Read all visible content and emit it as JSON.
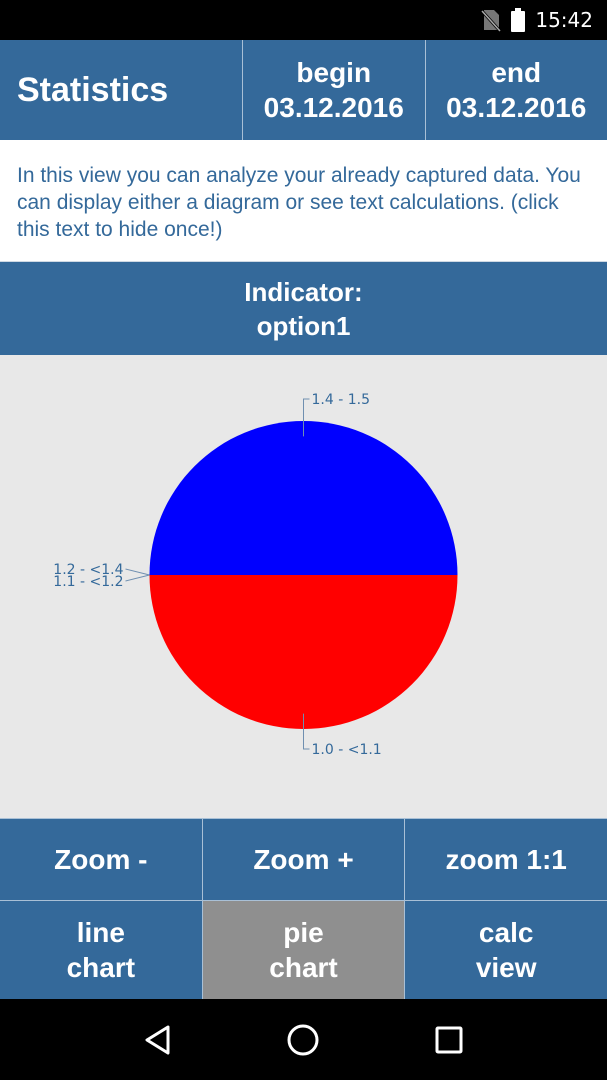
{
  "status_bar": {
    "time": "15:42",
    "icons": [
      "no-sim-icon",
      "battery-icon"
    ]
  },
  "header": {
    "title": "Statistics",
    "begin": {
      "label": "begin",
      "date": "03.12.2016"
    },
    "end": {
      "label": "end",
      "date": "03.12.2016"
    }
  },
  "info_text": "In this view you can analyze your already captured data. You can display either a diagram or see text calculations. (click this text to hide once!)",
  "indicator": {
    "label": "Indicator:",
    "value": "option1"
  },
  "chart_data": {
    "type": "pie",
    "labels": [
      "1.4 - 1.5",
      "1.1 - <1.2",
      "1.2 - <1.4",
      "1.0 - <1.1"
    ],
    "values": [
      50,
      0,
      0,
      50
    ],
    "colors": [
      "#0000ff",
      "#0000ff",
      "#ff0000",
      "#ff0000"
    ]
  },
  "zoom_buttons": {
    "zoom_out": "Zoom -",
    "zoom_in": "Zoom +",
    "zoom_reset": "zoom 1:1"
  },
  "view_buttons": {
    "line_chart": [
      "line",
      "chart"
    ],
    "pie_chart": [
      "pie",
      "chart"
    ],
    "calc_view": [
      "calc",
      "view"
    ],
    "active": "pie_chart"
  },
  "nav_bar": {
    "icons": [
      "back-icon",
      "home-icon",
      "recents-icon"
    ]
  },
  "theme": {
    "primary": "#34699a",
    "active": "#8f8f8f",
    "chart_bg": "#e8e8e8"
  }
}
